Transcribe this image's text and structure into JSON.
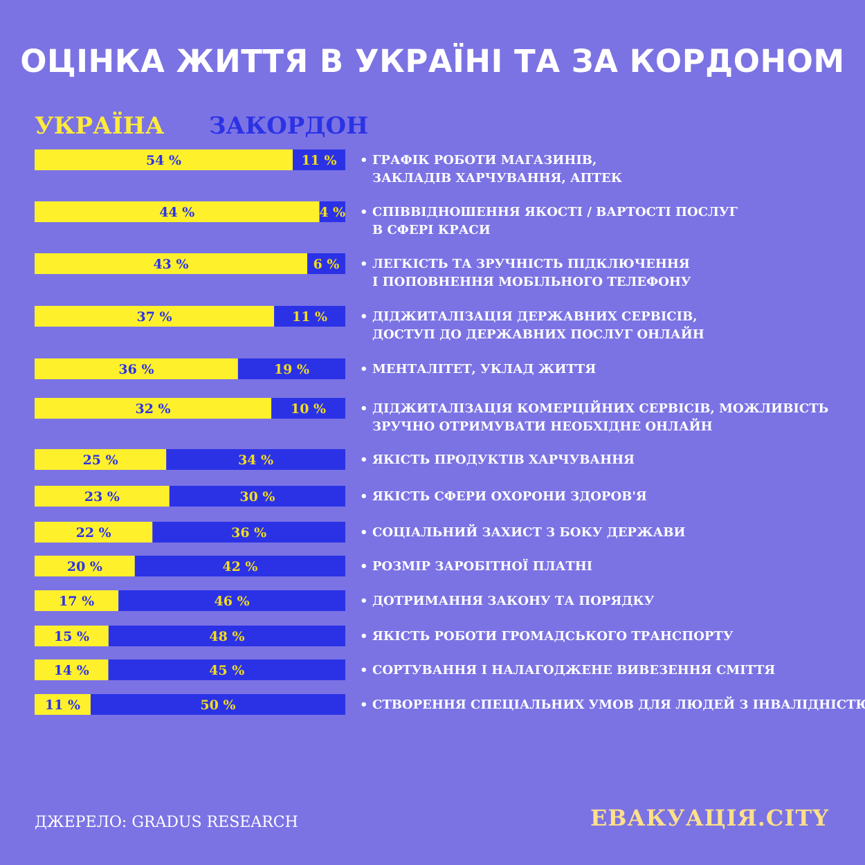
{
  "colors": {
    "background": "#7b73e3",
    "ukraine": "#fff02c",
    "abroad": "#2b32e6",
    "label_on_yellow": "#2b32e6",
    "label_on_blue": "#f2de1f",
    "brand": "#ffe08a"
  },
  "title": "ОЦІНКА ЖИТТЯ В УКРАЇНІ ТА ЗА КОРДОНОМ",
  "source": "ДЖЕРЕЛО:  GRADUS RESEARCH",
  "brand": "ЕВАКУАЦІЯ.CITY",
  "chart_data": {
    "type": "bar",
    "orientation": "horizontal",
    "stacked": true,
    "title": "ОЦІНКА ЖИТТЯ В УКРАЇНІ ТА ЗА КОРДОНОМ",
    "legend": [
      "УКРАЇНА",
      "ЗАКОРДОН"
    ],
    "legend_position": "top-left",
    "categories": [
      [
        "ГРАФІК РОБОТИ МАГАЗИНІВ,",
        "ЗАКЛАДІВ ХАРЧУВАННЯ, АПТЕК"
      ],
      [
        "СПІВВІДНОШЕННЯ ЯКОСТІ / ВАРТОСТІ ПОСЛУГ",
        "В СФЕРІ КРАСИ"
      ],
      [
        "ЛЕГКІСТЬ ТА ЗРУЧНІСТЬ ПІДКЛЮЧЕННЯ",
        "І ПОПОВНЕННЯ МОБІЛЬНОГО  ТЕЛЕФОНУ"
      ],
      [
        "ДІДЖИТАЛІЗАЦІЯ ДЕРЖАВНИХ СЕРВІСІВ,",
        "ДОСТУП ДО ДЕРЖАВНИХ ПОСЛУГ ОНЛАЙН"
      ],
      [
        "МЕНТАЛІТЕТ, УКЛАД ЖИТТЯ"
      ],
      [
        "ДІДЖИТАЛІЗАЦІЯ КОМЕРЦІЙНИХ СЕРВІСІВ, МОЖЛИВІСТЬ",
        "ЗРУЧНО ОТРИМУВАТИ НЕОБХІДНЕ ОНЛАЙН"
      ],
      [
        "ЯКІСТЬ ПРОДУКТІВ ХАРЧУВАННЯ"
      ],
      [
        "ЯКІСТЬ СФЕРИ ОХОРОНИ ЗДОРОВ'Я"
      ],
      [
        "СОЦІАЛЬНИЙ ЗАХИСТ З БОКУ ДЕРЖАВИ"
      ],
      [
        "РОЗМІР ЗАРОБІТНОЇ ПЛАТНІ"
      ],
      [
        "ДОТРИМАННЯ ЗАКОНУ ТА ПОРЯДКУ"
      ],
      [
        "ЯКІСТЬ РОБОТИ ГРОМАДСЬКОГО ТРАНСПОРТУ"
      ],
      [
        "СОРТУВАННЯ І НАЛАГОДЖЕНЕ ВИВЕЗЕННЯ СМІТТЯ"
      ],
      [
        "СТВОРЕННЯ СПЕЦІАЛЬНИХ УМОВ ДЛЯ ЛЮДЕЙ З ІНВАЛІДНІСТЮ"
      ]
    ],
    "series": [
      {
        "name": "УКРАЇНА",
        "values": [
          54,
          44,
          43,
          37,
          36,
          32,
          25,
          23,
          22,
          20,
          17,
          15,
          14,
          11
        ]
      },
      {
        "name": "ЗАКОРДОН",
        "values": [
          11,
          4,
          6,
          11,
          19,
          10,
          34,
          30,
          36,
          42,
          46,
          48,
          45,
          50
        ]
      }
    ],
    "value_suffix": " %"
  }
}
